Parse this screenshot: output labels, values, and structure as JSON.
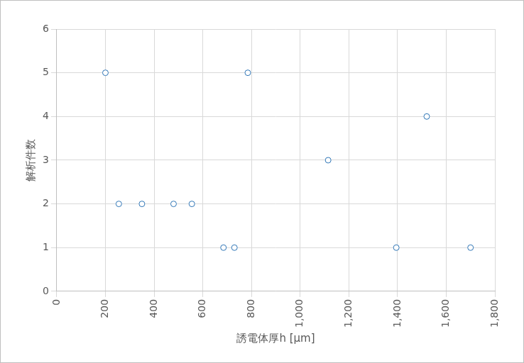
{
  "chart_data": {
    "type": "scatter",
    "x_label": "誘電体厚h [µm]",
    "y_label": "解析件数",
    "x": [
      200,
      255,
      350,
      480,
      555,
      685,
      730,
      785,
      1115,
      1395,
      1520,
      1700
    ],
    "values": [
      5,
      2,
      2,
      2,
      2,
      1,
      1,
      5,
      3,
      1,
      4,
      1
    ],
    "color": "#2e75b6",
    "marker": "circle",
    "xlim": [
      0,
      1800
    ],
    "xticks": [
      0,
      200,
      400,
      600,
      800,
      {
        "value": 1000,
        "label": "1,000"
      },
      {
        "value": 1200,
        "label": "1,200"
      },
      {
        "value": 1400,
        "label": "1,400"
      },
      {
        "value": 1600,
        "label": "1,600"
      },
      {
        "value": 1800,
        "label": "1,800"
      }
    ],
    "ylim": [
      0,
      6
    ],
    "yticks": [
      0,
      1,
      2,
      3,
      4,
      5,
      6
    ],
    "grid": true
  }
}
